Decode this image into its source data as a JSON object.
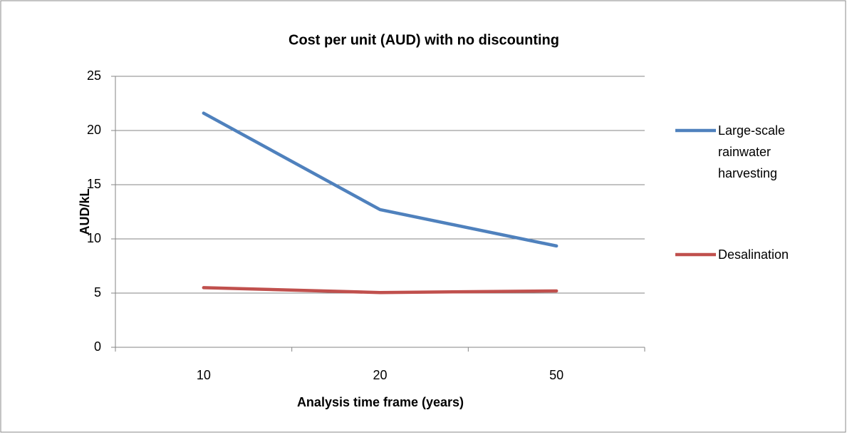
{
  "chart_data": {
    "type": "line",
    "title": "Cost per unit (AUD) with no discounting",
    "x_label": "Analysis time frame (years)",
    "y_label": "AUD/kL",
    "categories": [
      "10",
      "20",
      "50"
    ],
    "series": [
      {
        "name": "Large-scale rainwater harvesting",
        "color": "#4f81bd",
        "values": [
          21.6,
          12.7,
          9.35
        ]
      },
      {
        "name": "Desalination",
        "color": "#c0504d",
        "values": [
          5.5,
          5.05,
          5.2
        ]
      }
    ],
    "ylim": [
      0,
      25
    ],
    "yticks": [
      0,
      5,
      10,
      15,
      20,
      25
    ],
    "grid": true,
    "legend": "right"
  }
}
